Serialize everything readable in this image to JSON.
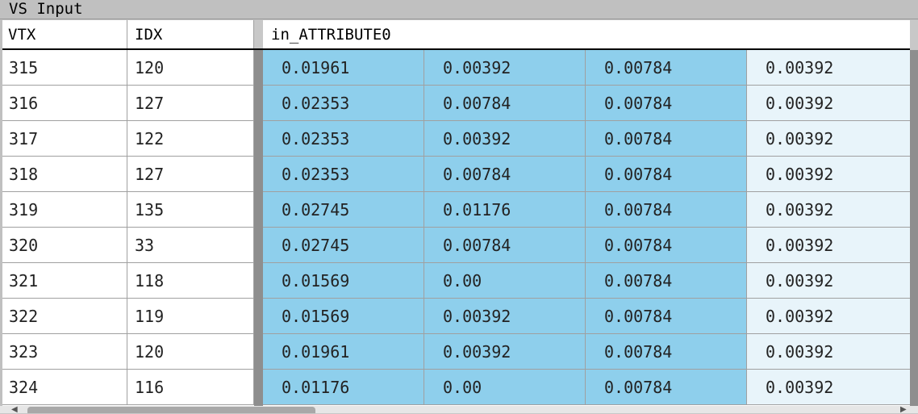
{
  "window": {
    "title": "VS Input"
  },
  "columns": {
    "vtx": "VTX",
    "idx": "IDX",
    "attribute": "in_ATTRIBUTE0"
  },
  "rows": [
    {
      "vtx": "315",
      "idx": "120",
      "a": [
        "0.01961",
        "0.00392",
        "0.00784",
        "0.00392"
      ]
    },
    {
      "vtx": "316",
      "idx": "127",
      "a": [
        "0.02353",
        "0.00784",
        "0.00784",
        "0.00392"
      ]
    },
    {
      "vtx": "317",
      "idx": "122",
      "a": [
        "0.02353",
        "0.00392",
        "0.00784",
        "0.00392"
      ]
    },
    {
      "vtx": "318",
      "idx": "127",
      "a": [
        "0.02353",
        "0.00784",
        "0.00784",
        "0.00392"
      ]
    },
    {
      "vtx": "319",
      "idx": "135",
      "a": [
        "0.02745",
        "0.01176",
        "0.00784",
        "0.00392"
      ]
    },
    {
      "vtx": "320",
      "idx": "33",
      "a": [
        "0.02745",
        "0.00784",
        "0.00784",
        "0.00392"
      ]
    },
    {
      "vtx": "321",
      "idx": "118",
      "a": [
        "0.01569",
        "0.00",
        "0.00784",
        "0.00392"
      ]
    },
    {
      "vtx": "322",
      "idx": "119",
      "a": [
        "0.01569",
        "0.00392",
        "0.00784",
        "0.00392"
      ]
    },
    {
      "vtx": "323",
      "idx": "120",
      "a": [
        "0.01961",
        "0.00392",
        "0.00784",
        "0.00392"
      ]
    },
    {
      "vtx": "324",
      "idx": "116",
      "a": [
        "0.01176",
        "0.00",
        "0.00784",
        "0.00392"
      ]
    }
  ],
  "colors": {
    "highlight": "#8ecfec",
    "last_column": "#e8f4fa",
    "splitter": "#8e8e8e"
  },
  "icons": {
    "scroll_left": "◀",
    "scroll_right": "▶"
  }
}
